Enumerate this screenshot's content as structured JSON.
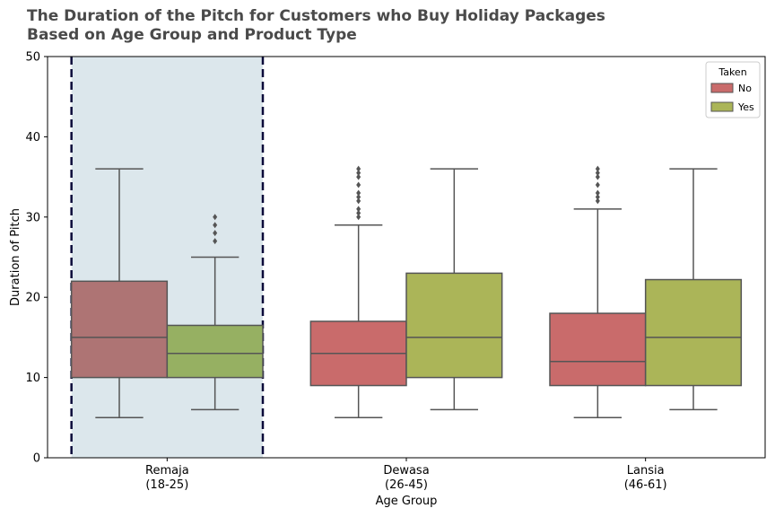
{
  "chart_data": {
    "type": "boxplot",
    "title_line1": "The Duration of the Pitch for Customers who Buy Holiday Packages",
    "title_line2": "Based on Age Group and Product Type",
    "xlabel": "Age Group",
    "ylabel": "Duration of Pitch",
    "ylim": [
      0,
      50
    ],
    "yticks": [
      0,
      10,
      20,
      30,
      40,
      50
    ],
    "categories": [
      {
        "line1": "Remaja",
        "line2": "(18-25)"
      },
      {
        "line1": "Dewasa",
        "line2": "(26-45)"
      },
      {
        "line1": "Lansia",
        "line2": "(46-61)"
      }
    ],
    "highlight_category": 0,
    "legend": {
      "title": "Taken",
      "position": "top-right"
    },
    "series": [
      {
        "name": "No",
        "color": "#c96b6b",
        "highlight_color": "#ae7474",
        "boxes": [
          {
            "whislo": 5,
            "q1": 10,
            "med": 15,
            "q3": 22,
            "whishi": 36,
            "fliers": []
          },
          {
            "whislo": 5,
            "q1": 9,
            "med": 13,
            "q3": 17,
            "whishi": 29,
            "fliers": [
              30,
              30.5,
              31,
              32,
              32.5,
              33,
              34,
              35,
              35.5,
              36
            ]
          },
          {
            "whislo": 5,
            "q1": 9,
            "med": 12,
            "q3": 18,
            "whishi": 31,
            "fliers": [
              32,
              32.5,
              33,
              34,
              35,
              35.5,
              36
            ]
          }
        ]
      },
      {
        "name": "Yes",
        "color": "#abb558",
        "highlight_color": "#96b062",
        "boxes": [
          {
            "whislo": 6,
            "q1": 10,
            "med": 13,
            "q3": 16.5,
            "whishi": 25,
            "fliers": [
              27,
              28,
              29,
              30
            ]
          },
          {
            "whislo": 6,
            "q1": 10,
            "med": 15,
            "q3": 23,
            "whishi": 36,
            "fliers": []
          },
          {
            "whislo": 6,
            "q1": 9,
            "med": 15,
            "q3": 22.2,
            "whishi": 36,
            "fliers": []
          }
        ]
      }
    ]
  }
}
